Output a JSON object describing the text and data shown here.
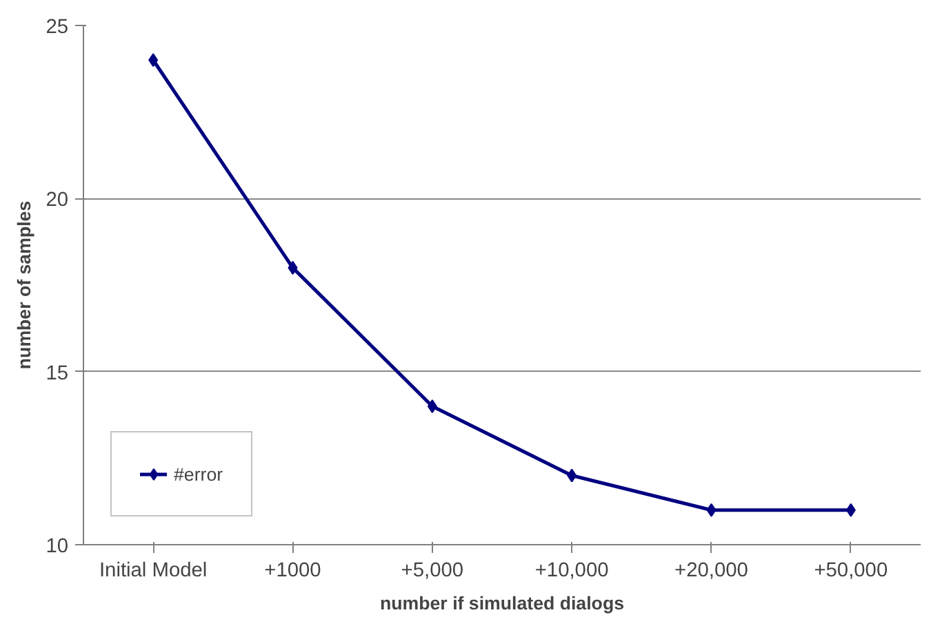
{
  "chart_data": {
    "type": "line",
    "xlabel": "number if simulated dialogs",
    "ylabel": "number of samples",
    "categories": [
      "Initial Model",
      "+1000",
      "+5,000",
      "+10,000",
      "+20,000",
      "+50,000"
    ],
    "series": [
      {
        "name": "#error",
        "color": "#000080",
        "values": [
          24,
          18,
          14,
          12,
          11,
          11
        ]
      }
    ],
    "ylim": [
      10,
      25
    ],
    "yticks": [
      10,
      15,
      20,
      25
    ],
    "grid": "y",
    "legend": "bottom left",
    "marker": "diamond",
    "line_style": "solid"
  }
}
